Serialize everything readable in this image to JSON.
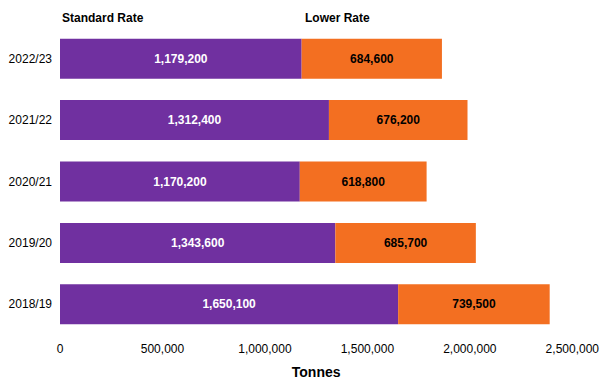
{
  "chart_data": {
    "type": "bar",
    "orientation": "horizontal",
    "stacked": true,
    "data_labels": true,
    "grid": false,
    "x_label": "Tonnes",
    "categories": [
      "2022/23",
      "2021/22",
      "2020/21",
      "2019/20",
      "2018/19"
    ],
    "series": [
      {
        "name": "Standard Rate",
        "color": "#7030a0",
        "values": [
          1179200,
          1312400,
          1170200,
          1343600,
          1650100
        ],
        "value_labels": [
          "1,179,200",
          "1,312,400",
          "1,170,200",
          "1,343,600",
          "1,650,100"
        ]
      },
      {
        "name": "Lower Rate",
        "color": "#f36f21",
        "values": [
          684600,
          676200,
          618800,
          685700,
          739500
        ],
        "value_labels": [
          "684,600",
          "676,200",
          "618,800",
          "685,700",
          "739,500"
        ]
      }
    ],
    "xlim": [
      0,
      2500000
    ],
    "xticks": [
      0,
      {
        "value": 500000,
        "label": "500,000"
      },
      {
        "value": 1000000,
        "label": "1,000,000"
      },
      {
        "value": 1500000,
        "label": "1,500,000"
      },
      {
        "value": 2000000,
        "label": "2,000,000"
      },
      {
        "value": 2500000,
        "label": "2,500,000"
      }
    ]
  }
}
